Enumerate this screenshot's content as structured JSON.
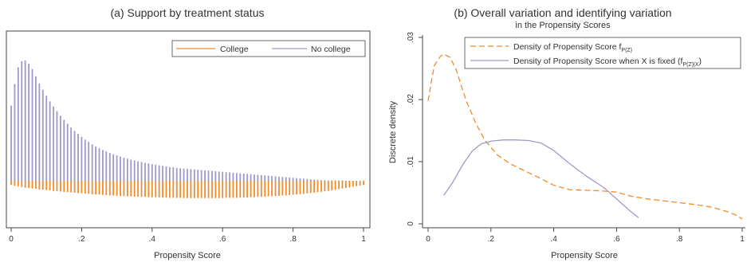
{
  "colors": {
    "college": "#F28B2C",
    "no_college": "#9E9AC8",
    "frame": "#444444"
  },
  "chart_data": [
    {
      "type": "bar",
      "title": "(a) Support by treatment status",
      "xlabel": "Propensity Score",
      "ylabel": "",
      "xlim": [
        0,
        1
      ],
      "xticks": [
        "0",
        ".2",
        ".4",
        ".6",
        ".8",
        "1"
      ],
      "yticks_visible": false,
      "legend": {
        "placement": "top-right",
        "entries": [
          "College",
          "No college"
        ]
      },
      "x_step": 0.01,
      "series": [
        {
          "name": "No college",
          "direction": "up",
          "x_start": 0.0,
          "values": [
            0.0252,
            0.0324,
            0.038,
            0.04,
            0.0403,
            0.0392,
            0.0374,
            0.035,
            0.0326,
            0.0305,
            0.0285,
            0.0266,
            0.0249,
            0.0233,
            0.0218,
            0.0204,
            0.0191,
            0.0179,
            0.0167,
            0.0157,
            0.0147,
            0.0138,
            0.013,
            0.0122,
            0.0115,
            0.0109,
            0.0103,
            0.0098,
            0.0093,
            0.0089,
            0.0085,
            0.0081,
            0.0077,
            0.0074,
            0.0071,
            0.0068,
            0.0065,
            0.0063,
            0.006,
            0.0058,
            0.0056,
            0.0054,
            0.0052,
            0.005,
            0.0048,
            0.0046,
            0.0045,
            0.0043,
            0.0042,
            0.0041,
            0.004,
            0.0039,
            0.0038,
            0.0037,
            0.0036,
            0.0035,
            0.0034,
            0.0033,
            0.0032,
            0.0031,
            0.003,
            0.0029,
            0.0028,
            0.0027,
            0.0026,
            0.0025,
            0.0024,
            0.0023,
            0.0022,
            0.0021,
            0.002,
            0.0019,
            0.0018,
            0.0017,
            0.0016,
            0.0015,
            0.0014,
            0.0013,
            0.0012,
            0.0011,
            0.001,
            0.0009,
            0.0008,
            0.0007,
            0.0006,
            0.0005,
            0.0004,
            0.0003,
            0.0002,
            0.0002,
            0.0001,
            0.0001,
            0.0001,
            0.0001,
            0.0001,
            0.0,
            0.0,
            0.0
          ]
        },
        {
          "name": "College",
          "direction": "down",
          "x_start": 0.0,
          "values": [
            0.0014,
            0.0017,
            0.0019,
            0.0021,
            0.0023,
            0.0024,
            0.0026,
            0.0027,
            0.0029,
            0.003,
            0.0031,
            0.0032,
            0.0034,
            0.0035,
            0.0036,
            0.0037,
            0.0038,
            0.0039,
            0.004,
            0.0041,
            0.0042,
            0.0043,
            0.0044,
            0.0045,
            0.0046,
            0.0046,
            0.0047,
            0.0048,
            0.0049,
            0.0049,
            0.005,
            0.0051,
            0.0051,
            0.0052,
            0.0052,
            0.0053,
            0.0053,
            0.0054,
            0.0054,
            0.0055,
            0.0055,
            0.0055,
            0.0056,
            0.0056,
            0.0056,
            0.0057,
            0.0057,
            0.0057,
            0.0057,
            0.0058,
            0.0058,
            0.0058,
            0.0058,
            0.0058,
            0.0058,
            0.0058,
            0.0058,
            0.0058,
            0.0058,
            0.0058,
            0.0058,
            0.0057,
            0.0057,
            0.0057,
            0.0057,
            0.0056,
            0.0056,
            0.0056,
            0.0055,
            0.0055,
            0.0054,
            0.0054,
            0.0053,
            0.0052,
            0.0052,
            0.0051,
            0.005,
            0.0049,
            0.0049,
            0.0048,
            0.0047,
            0.0046,
            0.0045,
            0.0044,
            0.0042,
            0.0041,
            0.004,
            0.0038,
            0.0037,
            0.0035,
            0.0034,
            0.0032,
            0.003,
            0.0028,
            0.0026,
            0.0024,
            0.0022,
            0.002,
            0.0018,
            0.0016,
            0.0014
          ]
        }
      ]
    },
    {
      "type": "line",
      "title": "(b) Overall variation and identifying variation",
      "subtitle": "in the Propensity Scores",
      "xlabel": "Propensity Score",
      "ylabel": "Discrete density",
      "xlim": [
        0,
        1
      ],
      "ylim": [
        0,
        0.03
      ],
      "xticks": [
        "0",
        ".2",
        ".4",
        ".6",
        ".8",
        "1"
      ],
      "yticks": [
        "0",
        ".01",
        ".02",
        ".03"
      ],
      "legend": {
        "placement": "top-right"
      },
      "series": [
        {
          "name": "Density of Propensity Score f",
          "name_sub": "P(Z)",
          "color_key": "college",
          "dash": true,
          "x": [
            0.0,
            0.01,
            0.02,
            0.04,
            0.05,
            0.07,
            0.09,
            0.12,
            0.15,
            0.18,
            0.22,
            0.26,
            0.3,
            0.35,
            0.4,
            0.45,
            0.5,
            0.55,
            0.6,
            0.65,
            0.7,
            0.75,
            0.8,
            0.85,
            0.9,
            0.95,
            0.98,
            1.0
          ],
          "y": [
            0.0198,
            0.0228,
            0.0255,
            0.027,
            0.0273,
            0.0268,
            0.0247,
            0.02,
            0.0164,
            0.0135,
            0.0111,
            0.0097,
            0.0087,
            0.0075,
            0.0062,
            0.0055,
            0.0054,
            0.0053,
            0.0051,
            0.0044,
            0.004,
            0.0037,
            0.0034,
            0.0031,
            0.0027,
            0.002,
            0.0014,
            0.0008
          ]
        },
        {
          "name": "Density of Propensity Score when X is fixed (f",
          "name_sub": "P(Z)|X",
          "name_tail": ")",
          "color_key": "no_college",
          "dash": false,
          "x": [
            0.05,
            0.08,
            0.11,
            0.14,
            0.17,
            0.2,
            0.24,
            0.28,
            0.32,
            0.36,
            0.4,
            0.45,
            0.5,
            0.53,
            0.56,
            0.6,
            0.64,
            0.67
          ],
          "y": [
            0.0046,
            0.0068,
            0.0095,
            0.0117,
            0.0129,
            0.0133,
            0.0135,
            0.0135,
            0.0134,
            0.013,
            0.0118,
            0.0097,
            0.0078,
            0.0068,
            0.0058,
            0.004,
            0.0022,
            0.001
          ]
        }
      ]
    }
  ]
}
